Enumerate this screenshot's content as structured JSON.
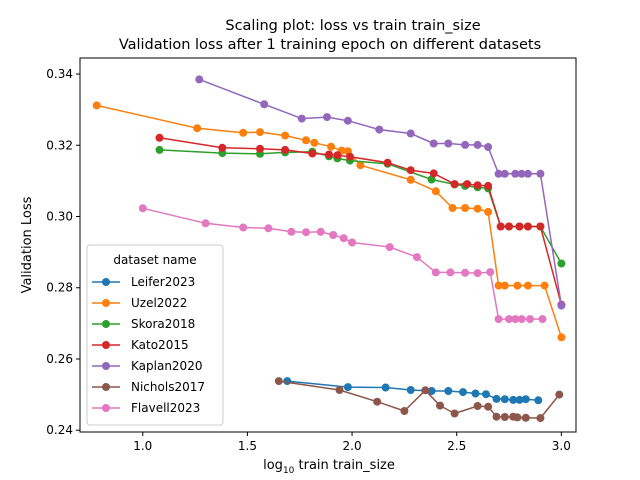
{
  "chart_data": {
    "type": "line",
    "title": "Scaling plot: loss vs train train_size",
    "subtitle": "Validation loss after 1 training epoch on different datasets",
    "xlabel_prefix": "log",
    "xlabel_sub": "10",
    "xlabel_suffix": " train train_size",
    "ylabel": "Validation Loss",
    "xlim": [
      0.7,
      3.07
    ],
    "ylim": [
      0.2395,
      0.3445
    ],
    "xticks": [
      1.0,
      1.5,
      2.0,
      2.5,
      3.0
    ],
    "xtick_labels": [
      "1.0",
      "1.5",
      "2.0",
      "2.5",
      "3.0"
    ],
    "yticks": [
      0.24,
      0.26,
      0.28,
      0.3,
      0.32,
      0.34
    ],
    "ytick_labels": [
      "0.24",
      "0.26",
      "0.28",
      "0.30",
      "0.32",
      "0.34"
    ],
    "grid": false,
    "legend": {
      "title": "dataset name",
      "placement": "lower-left"
    },
    "series": [
      {
        "name": "Leifer2023",
        "color": "#1f77b4",
        "x": [
          1.69,
          1.98,
          2.16,
          2.28,
          2.38,
          2.46,
          2.53,
          2.59,
          2.64,
          2.69,
          2.73,
          2.77,
          2.8,
          2.83,
          2.89
        ],
        "y": [
          0.2538,
          0.2521,
          0.252,
          0.2513,
          0.251,
          0.251,
          0.2507,
          0.2503,
          0.2501,
          0.2488,
          0.2487,
          0.2485,
          0.2485,
          0.2487,
          0.2484
        ]
      },
      {
        "name": "Uzel2022",
        "color": "#ff7f0e",
        "x": [
          0.78,
          1.26,
          1.48,
          1.56,
          1.68,
          1.78,
          1.82,
          1.9,
          1.95,
          1.98,
          2.04,
          2.28,
          2.4,
          2.48,
          2.54,
          2.6,
          2.65,
          2.7,
          2.73,
          2.79,
          2.84,
          2.92,
          3.0
        ],
        "y": [
          0.3312,
          0.3248,
          0.3235,
          0.3237,
          0.3227,
          0.3214,
          0.3207,
          0.3196,
          0.3185,
          0.3183,
          0.3144,
          0.3103,
          0.3071,
          0.3024,
          0.3024,
          0.3022,
          0.3013,
          0.2806,
          0.2806,
          0.2806,
          0.2806,
          0.2806,
          0.2661
        ]
      },
      {
        "name": "Skora2018",
        "color": "#2ca02c",
        "x": [
          1.08,
          1.38,
          1.56,
          1.68,
          1.81,
          1.89,
          1.93,
          1.99,
          2.17,
          2.38,
          2.49,
          2.54,
          2.6,
          2.65,
          2.71,
          2.75,
          2.8,
          2.84,
          2.9,
          3.0
        ],
        "y": [
          0.3187,
          0.3178,
          0.3176,
          0.318,
          0.3182,
          0.3169,
          0.3163,
          0.3157,
          0.3148,
          0.3104,
          0.309,
          0.3086,
          0.3082,
          0.3079,
          0.2972,
          0.2972,
          0.2972,
          0.2972,
          0.2972,
          0.2868
        ]
      },
      {
        "name": "Kato2015",
        "color": "#d62728",
        "x": [
          1.08,
          1.38,
          1.56,
          1.68,
          1.81,
          1.89,
          1.93,
          1.99,
          2.17,
          2.28,
          2.39,
          2.49,
          2.55,
          2.6,
          2.65,
          2.71,
          2.75,
          2.8,
          2.84,
          2.9,
          3.0
        ],
        "y": [
          0.3221,
          0.3193,
          0.319,
          0.3187,
          0.3177,
          0.3174,
          0.3172,
          0.3168,
          0.3151,
          0.313,
          0.3121,
          0.3091,
          0.3091,
          0.3088,
          0.3086,
          0.2972,
          0.2972,
          0.2972,
          0.2972,
          0.2972,
          0.2752
        ]
      },
      {
        "name": "Kaplan2020",
        "color": "#9467bd",
        "x": [
          1.27,
          1.58,
          1.76,
          1.88,
          1.98,
          2.13,
          2.28,
          2.39,
          2.46,
          2.54,
          2.6,
          2.65,
          2.7,
          2.73,
          2.78,
          2.81,
          2.84,
          2.9,
          3.0
        ],
        "y": [
          0.3385,
          0.3315,
          0.3275,
          0.3279,
          0.3269,
          0.3244,
          0.3233,
          0.3205,
          0.3205,
          0.3201,
          0.3201,
          0.3195,
          0.312,
          0.312,
          0.312,
          0.312,
          0.312,
          0.312,
          0.275
        ]
      },
      {
        "name": "Nichols2017",
        "color": "#8c564b",
        "x": [
          1.65,
          1.94,
          2.12,
          2.25,
          2.35,
          2.42,
          2.49,
          2.6,
          2.65,
          2.69,
          2.73,
          2.77,
          2.79,
          2.83,
          2.9,
          2.99
        ],
        "y": [
          0.2538,
          0.2513,
          0.248,
          0.2454,
          0.2512,
          0.2469,
          0.2447,
          0.2468,
          0.2466,
          0.2438,
          0.2437,
          0.2438,
          0.2436,
          0.2435,
          0.2434,
          0.25
        ]
      },
      {
        "name": "Flavell2023",
        "color": "#e377c2",
        "x": [
          1.0,
          1.3,
          1.48,
          1.6,
          1.71,
          1.78,
          1.85,
          1.91,
          1.96,
          2.0,
          2.18,
          2.31,
          2.4,
          2.47,
          2.54,
          2.6,
          2.66,
          2.7,
          2.75,
          2.78,
          2.81,
          2.85,
          2.91
        ],
        "y": [
          0.3023,
          0.2981,
          0.2969,
          0.2967,
          0.2957,
          0.2956,
          0.2957,
          0.2948,
          0.2939,
          0.2927,
          0.2914,
          0.2886,
          0.2843,
          0.2843,
          0.2842,
          0.2841,
          0.2844,
          0.2712,
          0.2712,
          0.2712,
          0.2712,
          0.2712,
          0.2712
        ]
      }
    ]
  }
}
